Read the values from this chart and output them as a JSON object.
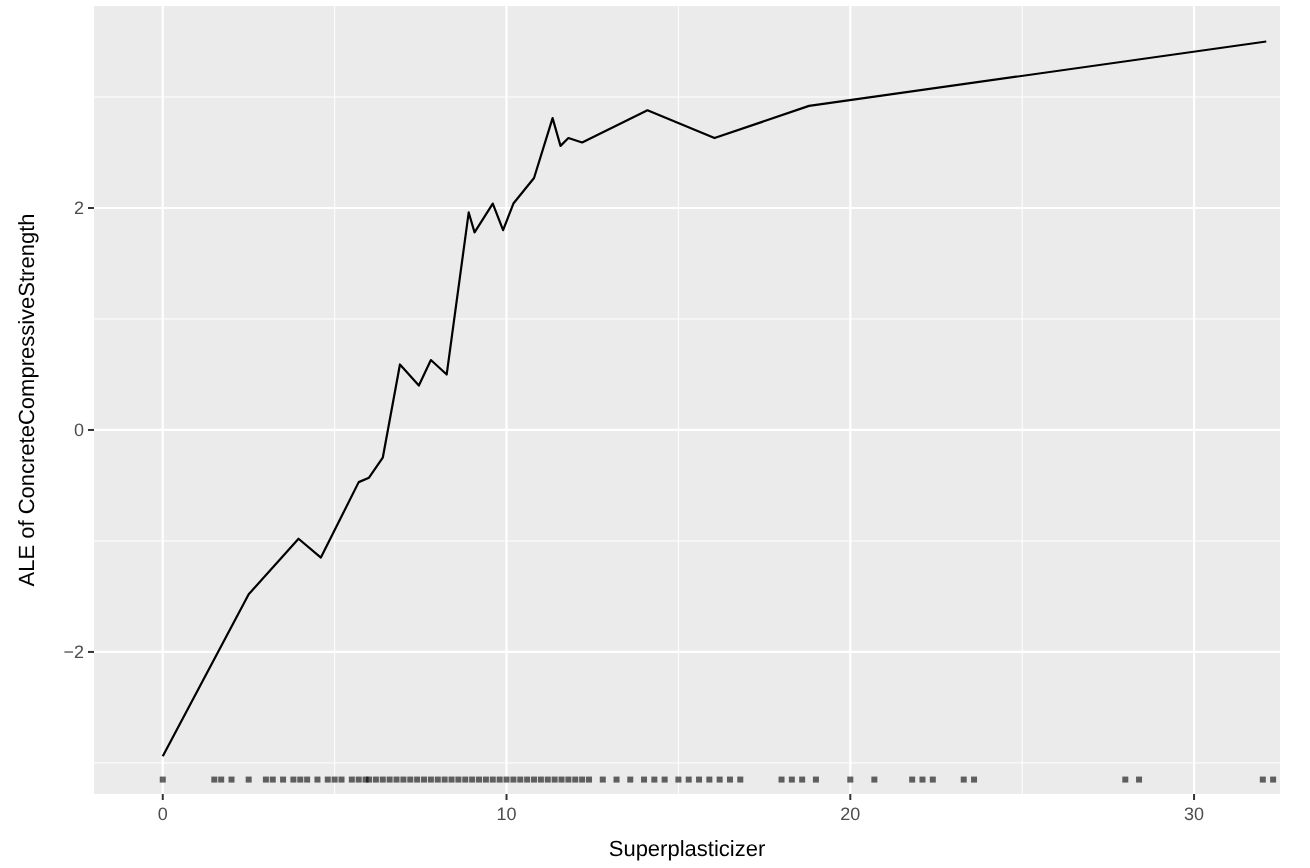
{
  "chart_data": {
    "type": "line",
    "xlabel": "Superplasticizer",
    "ylabel": "ALE of ConcreteCompressiveStrength",
    "xlim": [
      -2,
      32.5
    ],
    "ylim": [
      -3.28,
      3.82
    ],
    "xticks": [
      0,
      10,
      20,
      30
    ],
    "yticks": [
      -2,
      0,
      2
    ],
    "grid": true,
    "series": [
      {
        "type": "line",
        "color": "#000000",
        "x": [
          0,
          2.5,
          3.95,
          4.6,
          5.7,
          6.0,
          6.4,
          6.9,
          7.45,
          7.8,
          8.26,
          8.9,
          9.07,
          9.6,
          9.9,
          10.2,
          10.8,
          11.34,
          11.57,
          11.8,
          12.2,
          14.1,
          16.05,
          18.8,
          32.1
        ],
        "values": [
          -2.94,
          -1.48,
          -0.98,
          -1.15,
          -0.47,
          -0.43,
          -0.25,
          0.59,
          0.4,
          0.63,
          0.5,
          1.96,
          1.78,
          2.04,
          1.8,
          2.04,
          2.27,
          2.81,
          2.56,
          2.63,
          2.59,
          2.88,
          2.63,
          2.92,
          3.5
        ]
      },
      {
        "type": "scatter",
        "color": "#000000",
        "marker": "square",
        "x": [
          0,
          1.5,
          1.7,
          2,
          2.5,
          3,
          3.2,
          3.5,
          3.8,
          4,
          4.2,
          4.5,
          4.8,
          5,
          5.2,
          5.5,
          5.7,
          5.9,
          6,
          6.2,
          6.4,
          6.6,
          6.8,
          7,
          7.2,
          7.4,
          7.6,
          7.8,
          8,
          8.2,
          8.4,
          8.6,
          8.8,
          9,
          9.2,
          9.4,
          9.6,
          9.8,
          10,
          10.2,
          10.4,
          10.6,
          10.8,
          11,
          11.2,
          11.4,
          11.6,
          11.8,
          12,
          12.2,
          12.4,
          12.8,
          13.2,
          13.6,
          14,
          14.3,
          14.6,
          15,
          15.3,
          15.6,
          15.9,
          16.2,
          16.5,
          16.8,
          18,
          18.3,
          18.6,
          19,
          20,
          20.7,
          21.8,
          22.1,
          22.4,
          23.3,
          23.6,
          28,
          28.4,
          32,
          32.3
        ],
        "values": [
          -3.15,
          -3.15,
          -3.15,
          -3.15,
          -3.15,
          -3.15,
          -3.15,
          -3.15,
          -3.15,
          -3.15,
          -3.15,
          -3.15,
          -3.15,
          -3.15,
          -3.15,
          -3.15,
          -3.15,
          -3.15,
          -3.15,
          -3.15,
          -3.15,
          -3.15,
          -3.15,
          -3.15,
          -3.15,
          -3.15,
          -3.15,
          -3.15,
          -3.15,
          -3.15,
          -3.15,
          -3.15,
          -3.15,
          -3.15,
          -3.15,
          -3.15,
          -3.15,
          -3.15,
          -3.15,
          -3.15,
          -3.15,
          -3.15,
          -3.15,
          -3.15,
          -3.15,
          -3.15,
          -3.15,
          -3.15,
          -3.15,
          -3.15,
          -3.15,
          -3.15,
          -3.15,
          -3.15,
          -3.15,
          -3.15,
          -3.15,
          -3.15,
          -3.15,
          -3.15,
          -3.15,
          -3.15,
          -3.15,
          -3.15,
          -3.15,
          -3.15,
          -3.15,
          -3.15,
          -3.15,
          -3.15,
          -3.15,
          -3.15,
          -3.15,
          -3.15,
          -3.15,
          -3.15,
          -3.15,
          -3.15,
          -3.15
        ]
      }
    ]
  }
}
